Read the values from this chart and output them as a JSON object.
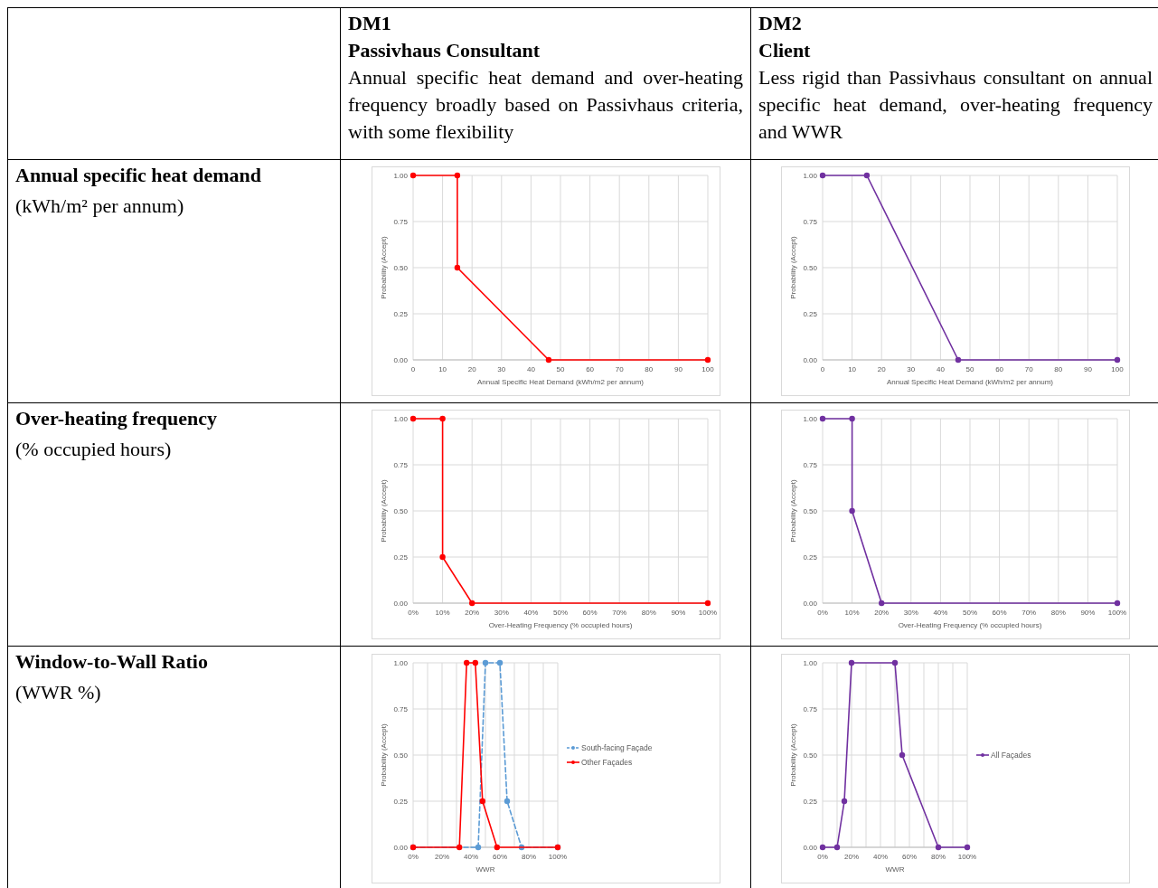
{
  "chart_data": [
    {
      "type": "other",
      "title": "DM1",
      "subtitle": "Passivhaus Consultant",
      "annotations": [
        "Annual specific heat demand and over-heating frequency broadly based on Passivhaus criteria, with some flexibility"
      ]
    },
    {
      "type": "other",
      "title": "DM2",
      "subtitle": "Client",
      "annotations": [
        "Less rigid than Passivhaus consultant on annual specific heat demand, over-heating frequency and WWR"
      ]
    },
    {
      "type": "other",
      "title": "Annual specific heat demand",
      "subtitle": "(kWh/m² per annum)"
    },
    {
      "type": "line",
      "xlabel": "Annual Specific Heat Demand (kWh/m2 per annum)",
      "ylabel": "Probability (Accept)",
      "xlim": [
        0,
        100
      ],
      "ylim": [
        0,
        1
      ],
      "xticks": [
        0,
        10,
        20,
        30,
        40,
        50,
        60,
        70,
        80,
        90,
        100
      ],
      "yticks": [
        {
          "value": 0,
          "label": "0.00"
        },
        {
          "value": 0.25,
          "label": "0.25"
        },
        {
          "value": 0.5,
          "label": "0.50"
        },
        {
          "value": 0.75,
          "label": "0.75"
        },
        {
          "value": 1,
          "label": "1.00"
        }
      ],
      "grid": true,
      "marker": "circle",
      "series": [
        {
          "color": "#ff0000",
          "x": [
            0,
            15,
            15,
            46,
            100
          ],
          "values": [
            1,
            1,
            0.5,
            0,
            0
          ]
        }
      ]
    },
    {
      "type": "line",
      "xlabel": "Annual Specific Heat Demand (kWh/m2 per annum)",
      "ylabel": "Probability (Accept)",
      "xlim": [
        0,
        100
      ],
      "ylim": [
        0,
        1
      ],
      "xticks": [
        0,
        10,
        20,
        30,
        40,
        50,
        60,
        70,
        80,
        90,
        100
      ],
      "yticks": [
        {
          "value": 0,
          "label": "0.00"
        },
        {
          "value": 0.25,
          "label": "0.25"
        },
        {
          "value": 0.5,
          "label": "0.50"
        },
        {
          "value": 0.75,
          "label": "0.75"
        },
        {
          "value": 1,
          "label": "1.00"
        }
      ],
      "grid": true,
      "marker": "circle",
      "series": [
        {
          "color": "#7030a0",
          "x": [
            0,
            15,
            46,
            100
          ],
          "values": [
            1,
            1,
            0,
            0
          ]
        }
      ]
    },
    {
      "type": "other",
      "title": "Over-heating frequency",
      "subtitle": "(% occupied hours)"
    },
    {
      "type": "line",
      "xlabel": "Over-Heating Frequency (% occupied hours)",
      "ylabel": "Probability (Accept)",
      "xlim": [
        0,
        100
      ],
      "ylim": [
        0,
        1
      ],
      "xticks": [
        {
          "value": 0,
          "label": "0%"
        },
        {
          "value": 10,
          "label": "10%"
        },
        {
          "value": 20,
          "label": "20%"
        },
        {
          "value": 30,
          "label": "30%"
        },
        {
          "value": 40,
          "label": "40%"
        },
        {
          "value": 50,
          "label": "50%"
        },
        {
          "value": 60,
          "label": "60%"
        },
        {
          "value": 70,
          "label": "70%"
        },
        {
          "value": 80,
          "label": "80%"
        },
        {
          "value": 90,
          "label": "90%"
        },
        {
          "value": 100,
          "label": "100%"
        }
      ],
      "yticks": [
        {
          "value": 0,
          "label": "0.00"
        },
        {
          "value": 0.25,
          "label": "0.25"
        },
        {
          "value": 0.5,
          "label": "0.50"
        },
        {
          "value": 0.75,
          "label": "0.75"
        },
        {
          "value": 1,
          "label": "1.00"
        }
      ],
      "grid": true,
      "marker": "circle",
      "series": [
        {
          "color": "#ff0000",
          "x": [
            0,
            10,
            10,
            20,
            100
          ],
          "values": [
            1,
            1,
            0.25,
            0,
            0
          ]
        }
      ]
    },
    {
      "type": "line",
      "xlabel": "Over-Heating Frequency (% occupied hours)",
      "ylabel": "Probability (Accept)",
      "xlim": [
        0,
        100
      ],
      "ylim": [
        0,
        1
      ],
      "xticks": [
        {
          "value": 0,
          "label": "0%"
        },
        {
          "value": 10,
          "label": "10%"
        },
        {
          "value": 20,
          "label": "20%"
        },
        {
          "value": 30,
          "label": "30%"
        },
        {
          "value": 40,
          "label": "40%"
        },
        {
          "value": 50,
          "label": "50%"
        },
        {
          "value": 60,
          "label": "60%"
        },
        {
          "value": 70,
          "label": "70%"
        },
        {
          "value": 80,
          "label": "80%"
        },
        {
          "value": 90,
          "label": "90%"
        },
        {
          "value": 100,
          "label": "100%"
        }
      ],
      "yticks": [
        {
          "value": 0,
          "label": "0.00"
        },
        {
          "value": 0.25,
          "label": "0.25"
        },
        {
          "value": 0.5,
          "label": "0.50"
        },
        {
          "value": 0.75,
          "label": "0.75"
        },
        {
          "value": 1,
          "label": "1.00"
        }
      ],
      "grid": true,
      "marker": "circle",
      "series": [
        {
          "color": "#7030a0",
          "x": [
            0,
            10,
            10,
            20,
            100
          ],
          "values": [
            1,
            1,
            0.5,
            0,
            0
          ]
        }
      ]
    },
    {
      "type": "other",
      "title": "Window-to-Wall Ratio",
      "subtitle": "(WWR %)"
    },
    {
      "type": "line",
      "xlabel": "WWR",
      "ylabel": "Probability (Accept)",
      "xlim": [
        0,
        100
      ],
      "ylim": [
        0,
        1
      ],
      "xticks": [
        {
          "value": 0,
          "label": "0%"
        },
        {
          "value": 10,
          "label": null
        },
        {
          "value": 20,
          "label": "20%"
        },
        {
          "value": 30,
          "label": null
        },
        {
          "value": 40,
          "label": "40%"
        },
        {
          "value": 50,
          "label": null
        },
        {
          "value": 60,
          "label": "60%"
        },
        {
          "value": 70,
          "label": null
        },
        {
          "value": 80,
          "label": "80%"
        },
        {
          "value": 90,
          "label": null
        },
        {
          "value": 100,
          "label": "100%"
        }
      ],
      "yticks": [
        {
          "value": 0,
          "label": "0.00"
        },
        {
          "value": 0.25,
          "label": "0.25"
        },
        {
          "value": 0.5,
          "label": "0.50"
        },
        {
          "value": 0.75,
          "label": "0.75"
        },
        {
          "value": 1,
          "label": "1.00"
        }
      ],
      "grid": true,
      "marker": "circle",
      "legend": "right",
      "series": [
        {
          "name": "South-facing Façade",
          "color": "#5b9bd5",
          "line_style": "dashed",
          "x": [
            0,
            45,
            50,
            60,
            65,
            75,
            100
          ],
          "values": [
            0,
            0,
            1,
            1,
            0.25,
            0,
            0
          ]
        },
        {
          "name": "Other Façades",
          "color": "#ff0000",
          "x": [
            0,
            32,
            37,
            43,
            48,
            58,
            100
          ],
          "values": [
            0,
            0,
            1,
            1,
            0.25,
            0,
            0
          ]
        }
      ]
    },
    {
      "type": "line",
      "xlabel": "WWR",
      "ylabel": "Probability (Accept)",
      "xlim": [
        0,
        100
      ],
      "ylim": [
        0,
        1
      ],
      "xticks": [
        {
          "value": 0,
          "label": "0%"
        },
        {
          "value": 10,
          "label": null
        },
        {
          "value": 20,
          "label": "20%"
        },
        {
          "value": 30,
          "label": null
        },
        {
          "value": 40,
          "label": "40%"
        },
        {
          "value": 50,
          "label": null
        },
        {
          "value": 60,
          "label": "60%"
        },
        {
          "value": 70,
          "label": null
        },
        {
          "value": 80,
          "label": "80%"
        },
        {
          "value": 90,
          "label": null
        },
        {
          "value": 100,
          "label": "100%"
        }
      ],
      "yticks": [
        {
          "value": 0,
          "label": "0.00"
        },
        {
          "value": 0.25,
          "label": "0.25"
        },
        {
          "value": 0.5,
          "label": "0.50"
        },
        {
          "value": 0.75,
          "label": "0.75"
        },
        {
          "value": 1,
          "label": "1.00"
        }
      ],
      "grid": true,
      "marker": "circle",
      "legend": "right",
      "series": [
        {
          "name": "All Façades",
          "color": "#7030a0",
          "x": [
            0,
            10,
            15,
            20,
            50,
            55,
            80,
            100
          ],
          "values": [
            0,
            0,
            0.25,
            1,
            1,
            0.5,
            0,
            0
          ]
        }
      ]
    }
  ]
}
